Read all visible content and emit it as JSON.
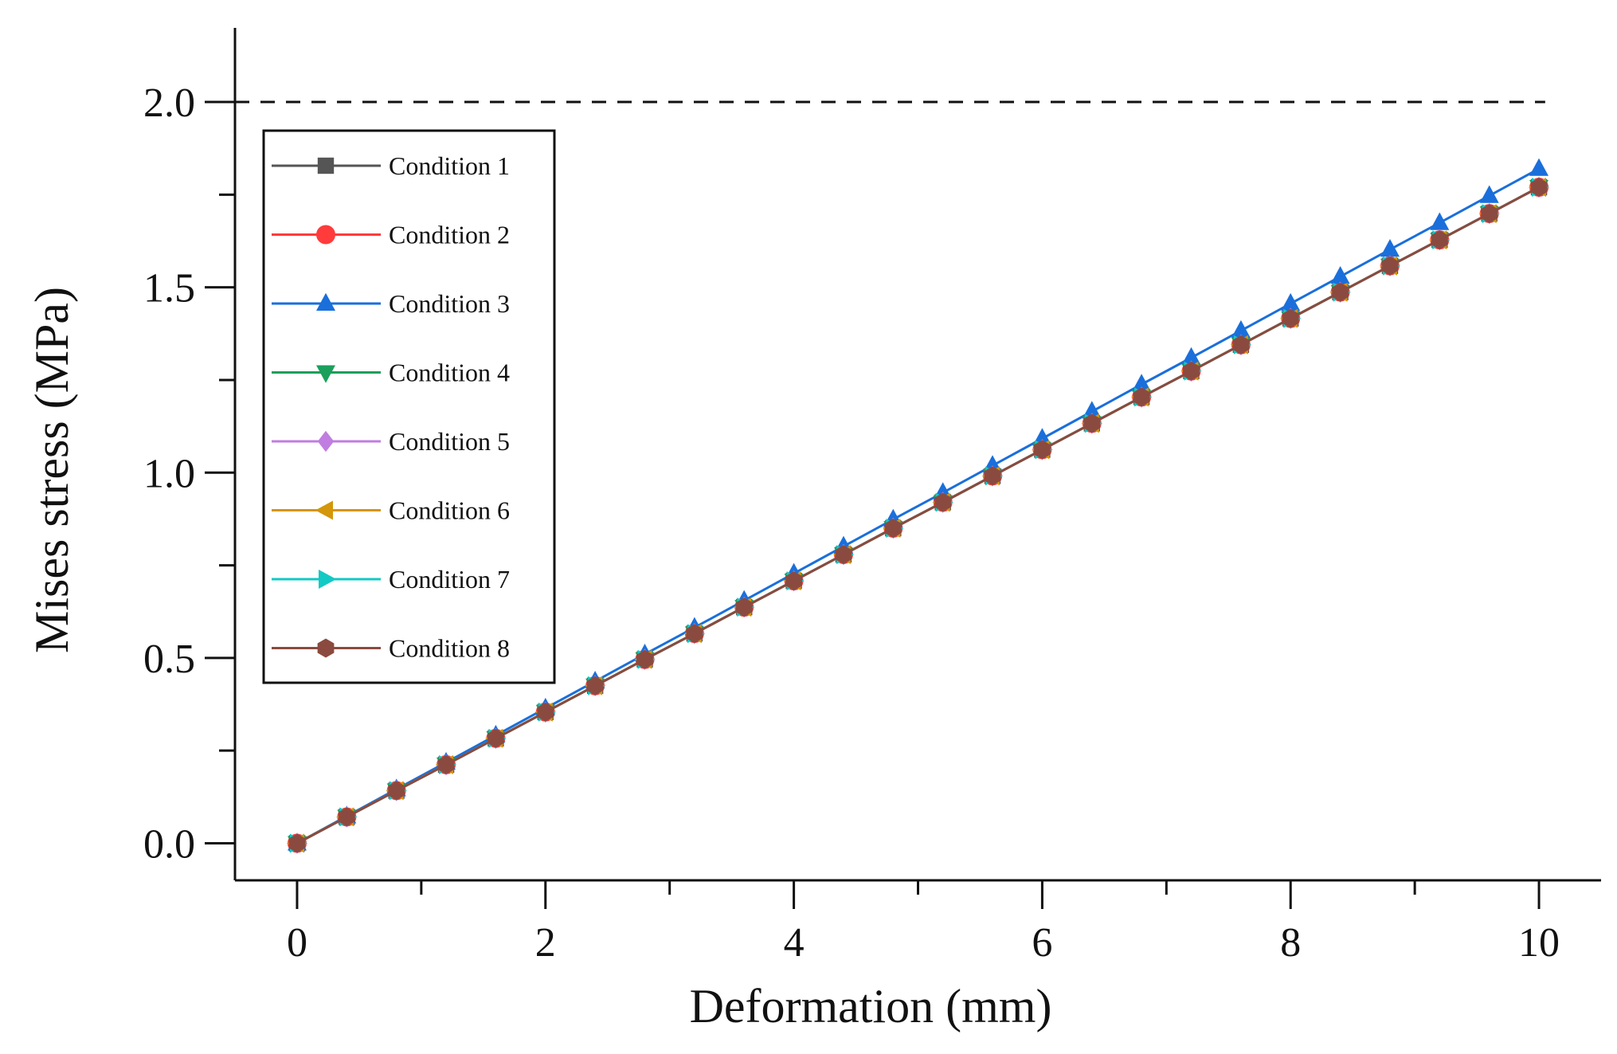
{
  "chart_data": {
    "type": "line",
    "title": "",
    "xlabel": "Deformation (mm)",
    "ylabel": "Mises stress (MPa)",
    "xlim": [
      -0.5,
      10.5
    ],
    "ylim": [
      -0.1,
      2.2
    ],
    "xticks": [
      0,
      2,
      4,
      6,
      8,
      10
    ],
    "xtick_labels": [
      "0",
      "2",
      "4",
      "6",
      "8",
      "10"
    ],
    "xminor": [
      1,
      3,
      5,
      7,
      9
    ],
    "yticks": [
      0,
      0.5,
      1.0,
      1.5,
      2.0
    ],
    "ytick_labels": [
      "0.0",
      "0.5",
      "1.0",
      "1.5",
      "2.0"
    ],
    "yminor": [
      0.25,
      0.75,
      1.25,
      1.75
    ],
    "reference_line": {
      "y": 2.0,
      "style": "dashed",
      "color": "#111111"
    },
    "legend_position": "top-left",
    "x": [
      0,
      0.4,
      0.8,
      1.2,
      1.6,
      2.0,
      2.4,
      2.8,
      3.2,
      3.6,
      4.0,
      4.4,
      4.8,
      5.2,
      5.6,
      6.0,
      6.4,
      6.8,
      7.2,
      7.6,
      8.0,
      8.4,
      8.8,
      9.2,
      9.6,
      10.0
    ],
    "series": [
      {
        "name": "Condition 1",
        "color": "#555555",
        "marker": "square",
        "values": [
          0,
          0.071,
          0.142,
          0.212,
          0.283,
          0.354,
          0.425,
          0.496,
          0.566,
          0.637,
          0.708,
          0.779,
          0.85,
          0.92,
          0.991,
          1.062,
          1.133,
          1.204,
          1.274,
          1.345,
          1.416,
          1.487,
          1.558,
          1.628,
          1.699,
          1.77
        ]
      },
      {
        "name": "Condition 2",
        "color": "#ff3b3b",
        "marker": "circle",
        "values": [
          0,
          0.071,
          0.142,
          0.212,
          0.283,
          0.354,
          0.425,
          0.496,
          0.566,
          0.637,
          0.708,
          0.779,
          0.85,
          0.92,
          0.991,
          1.062,
          1.133,
          1.204,
          1.274,
          1.345,
          1.416,
          1.487,
          1.558,
          1.628,
          1.699,
          1.77
        ]
      },
      {
        "name": "Condition 3",
        "color": "#1a6fdb",
        "marker": "triangle-up",
        "values": [
          0,
          0.073,
          0.146,
          0.218,
          0.291,
          0.364,
          0.437,
          0.51,
          0.582,
          0.655,
          0.728,
          0.801,
          0.874,
          0.946,
          1.019,
          1.092,
          1.165,
          1.238,
          1.31,
          1.383,
          1.456,
          1.529,
          1.602,
          1.674,
          1.747,
          1.82
        ]
      },
      {
        "name": "Condition 4",
        "color": "#1aa05a",
        "marker": "triangle-down",
        "values": [
          0,
          0.071,
          0.142,
          0.212,
          0.283,
          0.354,
          0.425,
          0.496,
          0.566,
          0.637,
          0.708,
          0.779,
          0.85,
          0.92,
          0.991,
          1.062,
          1.133,
          1.204,
          1.274,
          1.345,
          1.416,
          1.487,
          1.558,
          1.628,
          1.699,
          1.77
        ]
      },
      {
        "name": "Condition 5",
        "color": "#c07ee0",
        "marker": "diamond",
        "values": [
          0,
          0.071,
          0.142,
          0.212,
          0.283,
          0.354,
          0.425,
          0.496,
          0.566,
          0.637,
          0.708,
          0.779,
          0.85,
          0.92,
          0.991,
          1.062,
          1.133,
          1.204,
          1.274,
          1.345,
          1.416,
          1.487,
          1.558,
          1.628,
          1.699,
          1.77
        ]
      },
      {
        "name": "Condition 6",
        "color": "#d4960a",
        "marker": "triangle-left",
        "values": [
          0,
          0.071,
          0.142,
          0.212,
          0.283,
          0.354,
          0.425,
          0.496,
          0.566,
          0.637,
          0.708,
          0.779,
          0.85,
          0.92,
          0.991,
          1.062,
          1.133,
          1.204,
          1.274,
          1.345,
          1.416,
          1.487,
          1.558,
          1.628,
          1.699,
          1.77
        ]
      },
      {
        "name": "Condition 7",
        "color": "#12c9c4",
        "marker": "triangle-right",
        "values": [
          0,
          0.071,
          0.142,
          0.212,
          0.283,
          0.354,
          0.425,
          0.496,
          0.566,
          0.637,
          0.708,
          0.779,
          0.85,
          0.92,
          0.991,
          1.062,
          1.133,
          1.204,
          1.274,
          1.345,
          1.416,
          1.487,
          1.558,
          1.628,
          1.699,
          1.77
        ]
      },
      {
        "name": "Condition 8",
        "color": "#8b4a3f",
        "marker": "hexagon",
        "values": [
          0,
          0.071,
          0.142,
          0.212,
          0.283,
          0.354,
          0.425,
          0.496,
          0.566,
          0.637,
          0.708,
          0.779,
          0.85,
          0.92,
          0.991,
          1.062,
          1.133,
          1.204,
          1.274,
          1.345,
          1.416,
          1.487,
          1.558,
          1.628,
          1.699,
          1.77
        ]
      }
    ]
  }
}
